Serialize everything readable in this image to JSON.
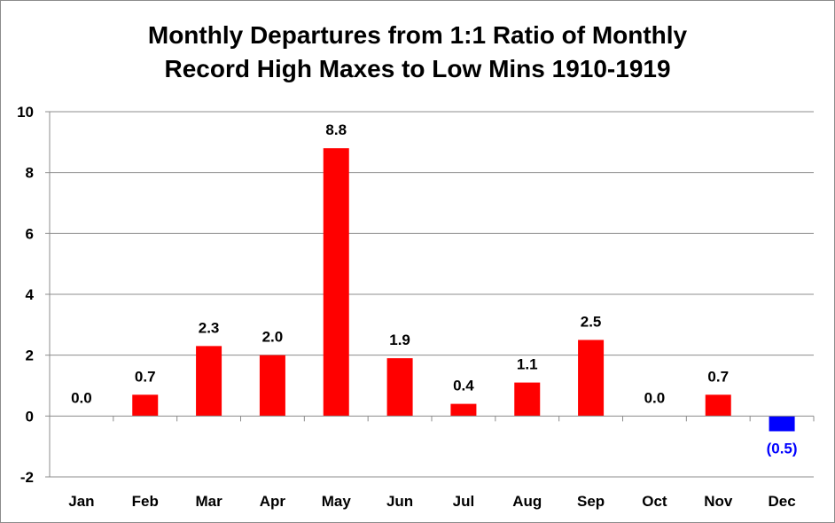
{
  "chart_data": {
    "type": "bar",
    "title_line1": "Monthly Departures from 1:1 Ratio of Monthly",
    "title_line2": "Record High Maxes to Low Mins 1910-1919",
    "categories": [
      "Jan",
      "Feb",
      "Mar",
      "Apr",
      "May",
      "Jun",
      "Jul",
      "Aug",
      "Sep",
      "Oct",
      "Nov",
      "Dec"
    ],
    "values": [
      0.0,
      0.7,
      2.3,
      2.0,
      8.8,
      1.9,
      0.4,
      1.1,
      2.5,
      0.0,
      0.7,
      -0.5
    ],
    "data_labels": [
      "0.0",
      "0.7",
      "2.3",
      "2.0",
      "8.8",
      "1.9",
      "0.4",
      "1.1",
      "2.5",
      "0.0",
      "0.7",
      "(0.5)"
    ],
    "ylim": [
      -2,
      10
    ],
    "yticks": [
      -2,
      0,
      2,
      4,
      6,
      8,
      10
    ],
    "xlabel": "",
    "ylabel": "",
    "grid": true,
    "colors": {
      "positive": "#ff0000",
      "negative": "#0000ff",
      "grid": "#8c8c8c",
      "negative_label": "#0000ff"
    }
  }
}
